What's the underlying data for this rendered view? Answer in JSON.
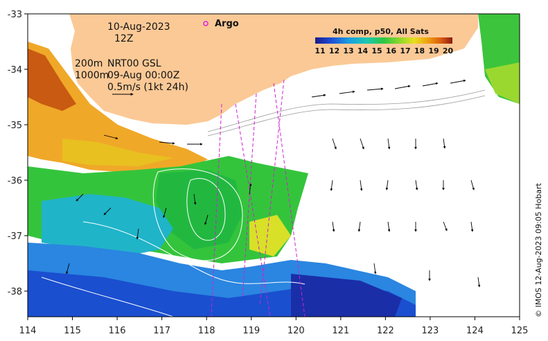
{
  "map": {
    "date_line": "10-Aug-2023",
    "hour_line": "12Z",
    "isobath_label_1": "200m",
    "isobath_label_2": "1000m",
    "product_label": "NRT00 GSL",
    "product_time": "09-Aug 00:00Z",
    "scale_label": "0.5m/s (1kt 24h)",
    "argo_label": "Argo",
    "colorbar_title": "4h comp, p50, All Sats",
    "colorbar_ticks": [
      "11",
      "12",
      "13",
      "14",
      "15",
      "16",
      "17",
      "18",
      "19",
      "20"
    ],
    "credit": "© IMOS 12-Aug-2023 09:05 Hobart",
    "x_ticks": [
      "114",
      "115",
      "116",
      "117",
      "118",
      "119",
      "120",
      "121",
      "122",
      "123",
      "124",
      "125"
    ],
    "y_ticks": [
      "-33",
      "-34",
      "-35",
      "-36",
      "-37",
      "-38"
    ],
    "land_color": "#fbc996",
    "argo_color": "#e020e0"
  }
}
